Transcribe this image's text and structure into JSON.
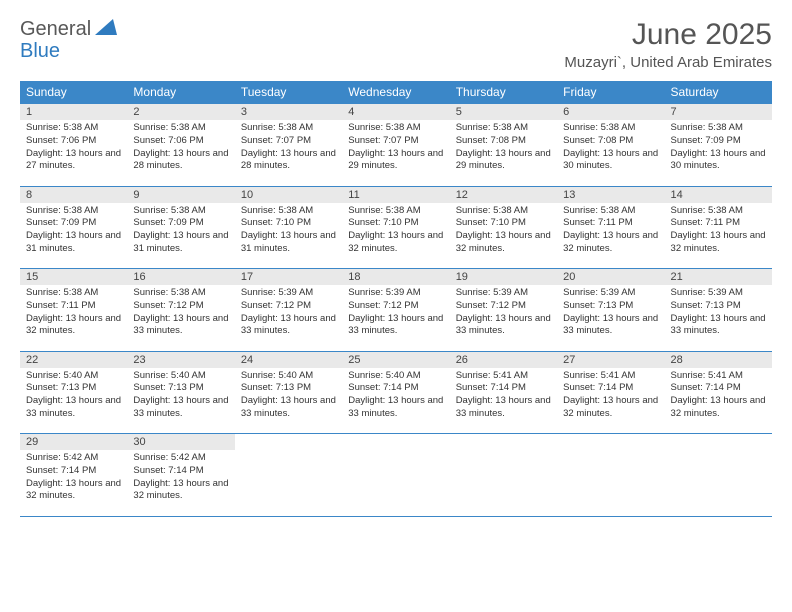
{
  "logo": {
    "general": "General",
    "blue": "Blue"
  },
  "title": "June 2025",
  "location": "Muzayri`, United Arab Emirates",
  "headers": [
    "Sunday",
    "Monday",
    "Tuesday",
    "Wednesday",
    "Thursday",
    "Friday",
    "Saturday"
  ],
  "colors": {
    "header_bg": "#3b87c8",
    "header_text": "#ffffff",
    "daynum_bg": "#e9e9e9",
    "border": "#3b87c8",
    "title_text": "#555555",
    "logo_gray": "#585858",
    "logo_blue": "#2f7bbf"
  },
  "weeks": [
    [
      {
        "n": "1",
        "sr": "5:38 AM",
        "ss": "7:06 PM",
        "dl": "13 hours and 27 minutes."
      },
      {
        "n": "2",
        "sr": "5:38 AM",
        "ss": "7:06 PM",
        "dl": "13 hours and 28 minutes."
      },
      {
        "n": "3",
        "sr": "5:38 AM",
        "ss": "7:07 PM",
        "dl": "13 hours and 28 minutes."
      },
      {
        "n": "4",
        "sr": "5:38 AM",
        "ss": "7:07 PM",
        "dl": "13 hours and 29 minutes."
      },
      {
        "n": "5",
        "sr": "5:38 AM",
        "ss": "7:08 PM",
        "dl": "13 hours and 29 minutes."
      },
      {
        "n": "6",
        "sr": "5:38 AM",
        "ss": "7:08 PM",
        "dl": "13 hours and 30 minutes."
      },
      {
        "n": "7",
        "sr": "5:38 AM",
        "ss": "7:09 PM",
        "dl": "13 hours and 30 minutes."
      }
    ],
    [
      {
        "n": "8",
        "sr": "5:38 AM",
        "ss": "7:09 PM",
        "dl": "13 hours and 31 minutes."
      },
      {
        "n": "9",
        "sr": "5:38 AM",
        "ss": "7:09 PM",
        "dl": "13 hours and 31 minutes."
      },
      {
        "n": "10",
        "sr": "5:38 AM",
        "ss": "7:10 PM",
        "dl": "13 hours and 31 minutes."
      },
      {
        "n": "11",
        "sr": "5:38 AM",
        "ss": "7:10 PM",
        "dl": "13 hours and 32 minutes."
      },
      {
        "n": "12",
        "sr": "5:38 AM",
        "ss": "7:10 PM",
        "dl": "13 hours and 32 minutes."
      },
      {
        "n": "13",
        "sr": "5:38 AM",
        "ss": "7:11 PM",
        "dl": "13 hours and 32 minutes."
      },
      {
        "n": "14",
        "sr": "5:38 AM",
        "ss": "7:11 PM",
        "dl": "13 hours and 32 minutes."
      }
    ],
    [
      {
        "n": "15",
        "sr": "5:38 AM",
        "ss": "7:11 PM",
        "dl": "13 hours and 32 minutes."
      },
      {
        "n": "16",
        "sr": "5:38 AM",
        "ss": "7:12 PM",
        "dl": "13 hours and 33 minutes."
      },
      {
        "n": "17",
        "sr": "5:39 AM",
        "ss": "7:12 PM",
        "dl": "13 hours and 33 minutes."
      },
      {
        "n": "18",
        "sr": "5:39 AM",
        "ss": "7:12 PM",
        "dl": "13 hours and 33 minutes."
      },
      {
        "n": "19",
        "sr": "5:39 AM",
        "ss": "7:12 PM",
        "dl": "13 hours and 33 minutes."
      },
      {
        "n": "20",
        "sr": "5:39 AM",
        "ss": "7:13 PM",
        "dl": "13 hours and 33 minutes."
      },
      {
        "n": "21",
        "sr": "5:39 AM",
        "ss": "7:13 PM",
        "dl": "13 hours and 33 minutes."
      }
    ],
    [
      {
        "n": "22",
        "sr": "5:40 AM",
        "ss": "7:13 PM",
        "dl": "13 hours and 33 minutes."
      },
      {
        "n": "23",
        "sr": "5:40 AM",
        "ss": "7:13 PM",
        "dl": "13 hours and 33 minutes."
      },
      {
        "n": "24",
        "sr": "5:40 AM",
        "ss": "7:13 PM",
        "dl": "13 hours and 33 minutes."
      },
      {
        "n": "25",
        "sr": "5:40 AM",
        "ss": "7:14 PM",
        "dl": "13 hours and 33 minutes."
      },
      {
        "n": "26",
        "sr": "5:41 AM",
        "ss": "7:14 PM",
        "dl": "13 hours and 33 minutes."
      },
      {
        "n": "27",
        "sr": "5:41 AM",
        "ss": "7:14 PM",
        "dl": "13 hours and 32 minutes."
      },
      {
        "n": "28",
        "sr": "5:41 AM",
        "ss": "7:14 PM",
        "dl": "13 hours and 32 minutes."
      }
    ],
    [
      {
        "n": "29",
        "sr": "5:42 AM",
        "ss": "7:14 PM",
        "dl": "13 hours and 32 minutes."
      },
      {
        "n": "30",
        "sr": "5:42 AM",
        "ss": "7:14 PM",
        "dl": "13 hours and 32 minutes."
      },
      null,
      null,
      null,
      null,
      null
    ]
  ],
  "labels": {
    "sunrise": "Sunrise:",
    "sunset": "Sunset:",
    "daylight": "Daylight:"
  }
}
